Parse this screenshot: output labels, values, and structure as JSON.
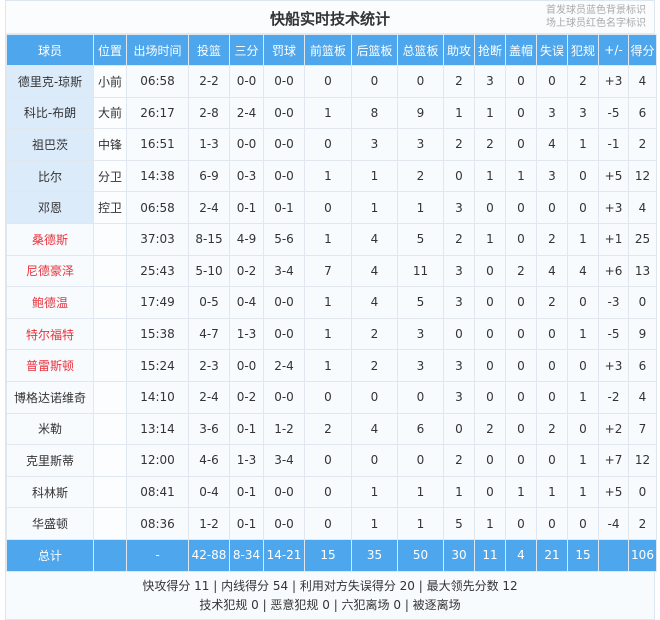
{
  "title": "快船实时技术统计",
  "legend": [
    "首发球员蓝色背景标识",
    "场上球员红色名字标识"
  ],
  "colors": {
    "header": "#4ea6ec",
    "starter_bg": "#dcebfa",
    "on_court_name": "#e8333d"
  },
  "columns": [
    "球员",
    "位置",
    "出场时间",
    "投篮",
    "三分",
    "罚球",
    "前篮板",
    "后篮板",
    "总篮板",
    "助攻",
    "抢断",
    "盖帽",
    "失误",
    "犯规",
    "+/-",
    "得分"
  ],
  "players": [
    {
      "name": "德里克-琼斯",
      "starter": true,
      "on_court": false,
      "stats": [
        "小前",
        "06:58",
        "2-2",
        "0-0",
        "0-0",
        "0",
        "0",
        "0",
        "2",
        "3",
        "0",
        "0",
        "2",
        "+3",
        "4"
      ]
    },
    {
      "name": "科比-布朗",
      "starter": true,
      "on_court": false,
      "stats": [
        "大前",
        "26:17",
        "2-8",
        "2-4",
        "0-0",
        "1",
        "8",
        "9",
        "1",
        "1",
        "0",
        "3",
        "3",
        "-5",
        "6"
      ]
    },
    {
      "name": "祖巴茨",
      "starter": true,
      "on_court": false,
      "stats": [
        "中锋",
        "16:51",
        "1-3",
        "0-0",
        "0-0",
        "0",
        "3",
        "3",
        "2",
        "2",
        "0",
        "4",
        "1",
        "-1",
        "2"
      ]
    },
    {
      "name": "比尔",
      "starter": true,
      "on_court": false,
      "stats": [
        "分卫",
        "14:38",
        "6-9",
        "0-3",
        "0-0",
        "1",
        "1",
        "2",
        "0",
        "1",
        "1",
        "3",
        "0",
        "+5",
        "12"
      ]
    },
    {
      "name": "邓恩",
      "starter": true,
      "on_court": false,
      "stats": [
        "控卫",
        "06:58",
        "2-4",
        "0-1",
        "0-1",
        "0",
        "1",
        "1",
        "3",
        "0",
        "0",
        "0",
        "0",
        "+3",
        "4"
      ]
    },
    {
      "name": "桑德斯",
      "starter": false,
      "on_court": true,
      "stats": [
        "",
        "37:03",
        "8-15",
        "4-9",
        "5-6",
        "1",
        "4",
        "5",
        "2",
        "1",
        "0",
        "2",
        "1",
        "+1",
        "25"
      ]
    },
    {
      "name": "尼德豪泽",
      "starter": false,
      "on_court": true,
      "stats": [
        "",
        "25:43",
        "5-10",
        "0-2",
        "3-4",
        "7",
        "4",
        "11",
        "3",
        "0",
        "2",
        "4",
        "4",
        "+6",
        "13"
      ]
    },
    {
      "name": "鲍德温",
      "starter": false,
      "on_court": true,
      "stats": [
        "",
        "17:49",
        "0-5",
        "0-4",
        "0-0",
        "1",
        "4",
        "5",
        "3",
        "0",
        "0",
        "2",
        "0",
        "-3",
        "0"
      ]
    },
    {
      "name": "特尔福特",
      "starter": false,
      "on_court": true,
      "stats": [
        "",
        "15:38",
        "4-7",
        "1-3",
        "0-0",
        "1",
        "2",
        "3",
        "0",
        "0",
        "0",
        "0",
        "1",
        "-5",
        "9"
      ]
    },
    {
      "name": "普雷斯顿",
      "starter": false,
      "on_court": true,
      "stats": [
        "",
        "15:24",
        "2-3",
        "0-0",
        "2-4",
        "1",
        "2",
        "3",
        "3",
        "0",
        "0",
        "0",
        "0",
        "+3",
        "6"
      ]
    },
    {
      "name": "博格达诺维奇",
      "starter": false,
      "on_court": false,
      "stats": [
        "",
        "14:10",
        "2-4",
        "0-2",
        "0-0",
        "0",
        "0",
        "0",
        "3",
        "0",
        "0",
        "0",
        "1",
        "-2",
        "4"
      ]
    },
    {
      "name": "米勒",
      "starter": false,
      "on_court": false,
      "stats": [
        "",
        "13:14",
        "3-6",
        "0-1",
        "1-2",
        "2",
        "4",
        "6",
        "0",
        "2",
        "0",
        "2",
        "0",
        "+2",
        "7"
      ]
    },
    {
      "name": "克里斯蒂",
      "starter": false,
      "on_court": false,
      "stats": [
        "",
        "12:00",
        "4-6",
        "1-3",
        "3-4",
        "0",
        "0",
        "0",
        "2",
        "0",
        "0",
        "0",
        "1",
        "+7",
        "12"
      ]
    },
    {
      "name": "科林斯",
      "starter": false,
      "on_court": false,
      "stats": [
        "",
        "08:41",
        "0-4",
        "0-1",
        "0-0",
        "0",
        "1",
        "1",
        "1",
        "0",
        "1",
        "1",
        "1",
        "+5",
        "0"
      ]
    },
    {
      "name": "华盛顿",
      "starter": false,
      "on_court": false,
      "stats": [
        "",
        "08:36",
        "1-2",
        "0-1",
        "0-0",
        "0",
        "1",
        "1",
        "5",
        "1",
        "0",
        "0",
        "0",
        "-4",
        "2"
      ]
    }
  ],
  "total": [
    "总计",
    "",
    "-",
    "42-88",
    "8-34",
    "14-21",
    "15",
    "35",
    "50",
    "30",
    "11",
    "4",
    "21",
    "15",
    "",
    "106"
  ],
  "footer": [
    "快攻得分 11 | 内线得分 54 | 利用对方失误得分 20 | 最大领先分数 12",
    "技术犯规 0 | 恶意犯规 0 | 六犯离场 0 | 被逐离场"
  ]
}
